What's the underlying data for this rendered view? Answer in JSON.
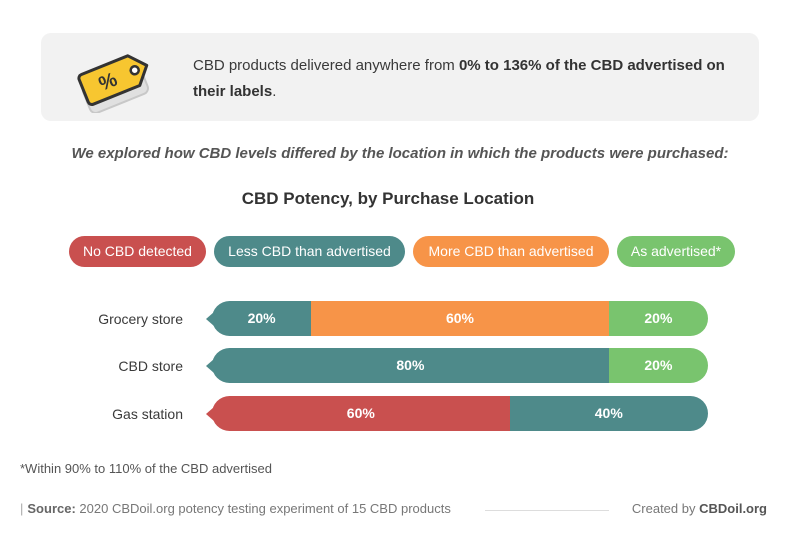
{
  "callout": {
    "text_before": "CBD products delivered anywhere from ",
    "text_bold": "0% to 136% of the CBD advertised on their labels",
    "text_after": ".",
    "icon": "price-tag-percent-icon"
  },
  "intro": "We explored how CBD levels differed by the location in which the products were purchased:",
  "colors": {
    "none": "#c9504f",
    "less": "#4e8a8a",
    "more": "#f79448",
    "as": "#79c46e",
    "tag_outline": "#333333",
    "tag_fill": "#f7c630"
  },
  "chart_data": {
    "type": "bar",
    "orientation": "horizontal",
    "stacked": true,
    "percent": true,
    "title": "CBD Potency, by Purchase Location",
    "legend_position": "top",
    "categories": [
      "Grocery store",
      "CBD store",
      "Gas station"
    ],
    "series": [
      {
        "key": "none",
        "name": "No CBD detected",
        "values": [
          0,
          0,
          60
        ],
        "labels": [
          "",
          "",
          "60%"
        ]
      },
      {
        "key": "less",
        "name": "Less CBD than advertised",
        "values": [
          20,
          80,
          40
        ],
        "labels": [
          "20%",
          "80%",
          "40%"
        ]
      },
      {
        "key": "more",
        "name": "More CBD than advertised",
        "values": [
          60,
          0,
          0
        ],
        "labels": [
          "60%",
          "",
          ""
        ]
      },
      {
        "key": "as",
        "name": "As advertised*",
        "values": [
          20,
          20,
          0
        ],
        "labels": [
          "20%",
          "20%",
          ""
        ]
      }
    ],
    "xlim": [
      0,
      100
    ]
  },
  "footnote": "*Within 90% to 110% of the CBD advertised",
  "source": {
    "label": "Source:",
    "text": "2020 CBDoil.org potency testing experiment of 15 CBD products"
  },
  "credit": {
    "prefix": "Created by",
    "brand": "CBDoil.org"
  }
}
